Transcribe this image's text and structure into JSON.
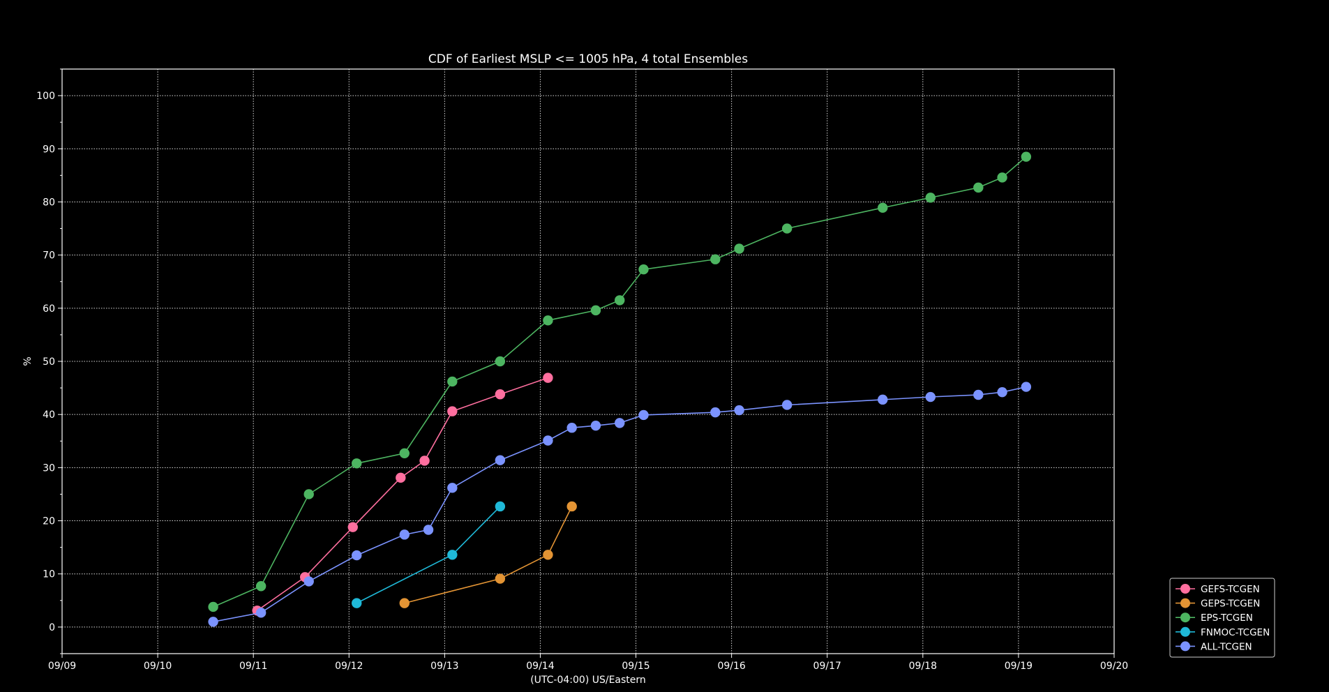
{
  "chart_data": {
    "type": "line",
    "title": "CDF of Earliest MSLP <= 1005 hPa, 4 total Ensembles",
    "xlabel": "(UTC-04:00) US/Eastern",
    "ylabel": "%",
    "xlim": [
      0,
      11
    ],
    "ylim": [
      -5,
      105
    ],
    "x_ticks": [
      {
        "value": 0,
        "label": "09/09"
      },
      {
        "value": 1,
        "label": "09/10"
      },
      {
        "value": 2,
        "label": "09/11"
      },
      {
        "value": 3,
        "label": "09/12"
      },
      {
        "value": 4,
        "label": "09/13"
      },
      {
        "value": 5,
        "label": "09/14"
      },
      {
        "value": 6,
        "label": "09/15"
      },
      {
        "value": 7,
        "label": "09/16"
      },
      {
        "value": 8,
        "label": "09/17"
      },
      {
        "value": 9,
        "label": "09/18"
      },
      {
        "value": 10,
        "label": "09/19"
      },
      {
        "value": 11,
        "label": "09/20"
      }
    ],
    "y_ticks": [
      0,
      10,
      20,
      30,
      40,
      50,
      60,
      70,
      80,
      90,
      100
    ],
    "y_minor_ticks": [
      -5,
      5,
      15,
      25,
      35,
      45,
      55,
      65,
      75,
      85,
      95,
      105
    ],
    "grid": true,
    "legend_position": "lower-right outside",
    "series": [
      {
        "name": "GEFS-TCGEN",
        "color": "#ff6f9f",
        "x": [
          2.04,
          2.54,
          3.04,
          3.54,
          3.79,
          4.08,
          4.58,
          5.08
        ],
        "y": [
          3.1,
          9.4,
          18.8,
          28.1,
          31.3,
          40.6,
          43.8,
          46.9
        ]
      },
      {
        "name": "GEPS-TCGEN",
        "color": "#e39434",
        "x": [
          3.58,
          4.58,
          5.08,
          5.33
        ],
        "y": [
          4.5,
          9.1,
          13.6,
          22.7
        ]
      },
      {
        "name": "EPS-TCGEN",
        "color": "#4db561",
        "x": [
          1.58,
          2.08,
          2.58,
          3.08,
          3.58,
          4.08,
          4.58,
          5.08,
          5.58,
          5.83,
          6.08,
          6.83,
          7.08,
          7.58,
          8.58,
          9.08,
          9.58,
          9.83,
          10.08
        ],
        "y": [
          3.8,
          7.7,
          25.0,
          30.8,
          32.7,
          46.2,
          50.0,
          57.7,
          59.6,
          61.5,
          67.3,
          69.2,
          71.2,
          75.0,
          78.9,
          80.8,
          82.7,
          84.6,
          88.5
        ]
      },
      {
        "name": "FNMOC-TCGEN",
        "color": "#1fb9d8",
        "x": [
          3.08,
          4.08,
          4.58
        ],
        "y": [
          4.5,
          13.6,
          22.7
        ]
      },
      {
        "name": "ALL-TCGEN",
        "color": "#7b93ff",
        "x": [
          1.58,
          2.08,
          2.58,
          3.08,
          3.58,
          3.83,
          4.08,
          4.58,
          5.08,
          5.33,
          5.58,
          5.83,
          6.08,
          6.83,
          7.08,
          7.58,
          8.58,
          9.08,
          9.58,
          9.83,
          10.08
        ],
        "y": [
          1.0,
          2.7,
          8.6,
          13.5,
          17.4,
          18.3,
          26.2,
          31.4,
          35.1,
          37.5,
          37.9,
          38.4,
          39.9,
          40.4,
          40.8,
          41.8,
          42.8,
          43.3,
          43.7,
          44.2,
          45.2
        ]
      }
    ]
  }
}
